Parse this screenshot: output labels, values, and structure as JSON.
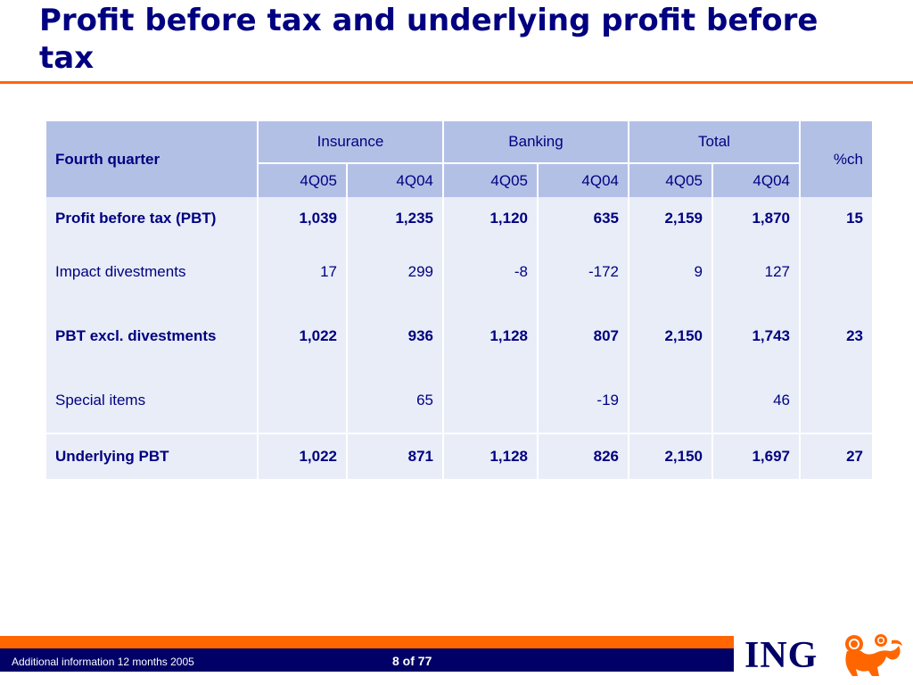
{
  "slide": {
    "title": "Profit before tax and underlying profit before tax"
  },
  "table": {
    "row_header_label": "Fourth quarter",
    "groups": [
      "Insurance",
      "Banking",
      "Total"
    ],
    "pct_header": "%ch",
    "periods": [
      "4Q05",
      "4Q04",
      "4Q05",
      "4Q04",
      "4Q05",
      "4Q04"
    ],
    "rows": [
      {
        "label": "Profit before tax (PBT)",
        "bold": true,
        "values": [
          "1,039",
          "1,235",
          "1,120",
          "635",
          "2,159",
          "1,870"
        ],
        "pct": "15"
      },
      {
        "label": "Impact divestments",
        "bold": false,
        "values": [
          "17",
          "299",
          "-8",
          "-172",
          "9",
          "127"
        ],
        "pct": ""
      },
      {
        "label": "PBT excl. divestments",
        "bold": true,
        "values": [
          "1,022",
          "936",
          "1,128",
          "807",
          "2,150",
          "1,743"
        ],
        "pct": "23"
      },
      {
        "label": "Special items",
        "bold": false,
        "values": [
          "",
          "65",
          "",
          "-19",
          "",
          "46"
        ],
        "pct": ""
      },
      {
        "label": "Underlying PBT",
        "bold": true,
        "values": [
          "1,022",
          "871",
          "1,128",
          "826",
          "2,150",
          "1,697"
        ],
        "pct": "27"
      }
    ]
  },
  "footer": {
    "left_text": "Additional information 12 months 2005",
    "page_indicator": "8 of 77",
    "logo_text": "ING",
    "colors": {
      "accent": "#ff6600",
      "navy": "#000066",
      "header_fill": "#b3c0e6",
      "body_fill": "#e8edf7",
      "text": "#000080"
    }
  }
}
